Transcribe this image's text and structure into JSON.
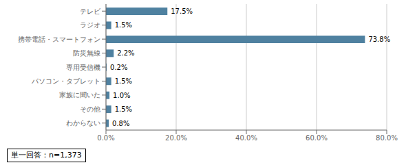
{
  "chart_data": {
    "type": "bar",
    "orientation": "horizontal",
    "categories": [
      "テレビ",
      "ラジオ",
      "携帯電話・スマートフォン",
      "防災無線",
      "専用受信機",
      "パソコン・タブレット",
      "家族に聞いた",
      "その他",
      "わからない"
    ],
    "values": [
      17.5,
      1.5,
      73.8,
      2.2,
      0.2,
      1.5,
      1.0,
      1.5,
      0.8
    ],
    "value_labels": [
      "17.5%",
      "1.5%",
      "73.8%",
      "2.2%",
      "0.2%",
      "1.5%",
      "1.0%",
      "1.5%",
      "0.8%"
    ],
    "data_labels": true,
    "color": "#4f81a0",
    "xlim": [
      0,
      80
    ],
    "xticks": [
      {
        "value": 0,
        "label": "0.0%"
      },
      {
        "value": 20,
        "label": "20.0%"
      },
      {
        "value": 40,
        "label": "40.0%"
      },
      {
        "value": 60,
        "label": "60.0%"
      },
      {
        "value": 80,
        "label": "80.0%"
      }
    ],
    "grid": true,
    "annotations": [
      "単一回答：n=1,373"
    ]
  }
}
